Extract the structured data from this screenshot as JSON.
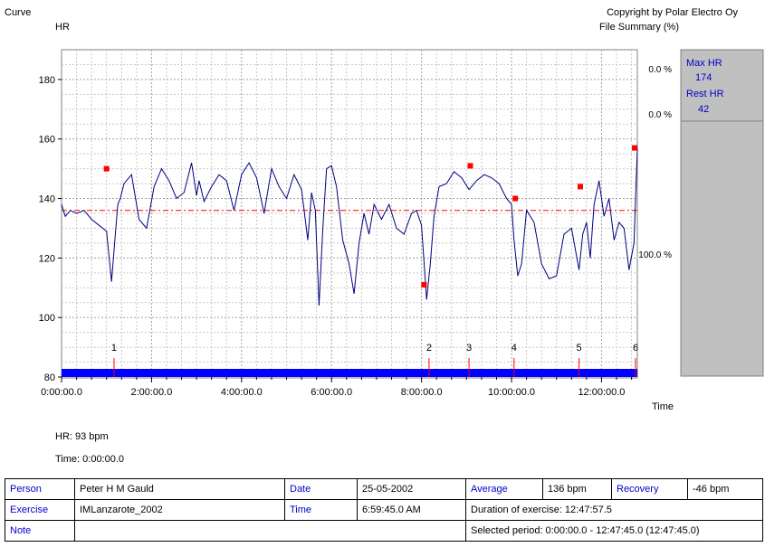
{
  "header": {
    "left_title": "Curve",
    "left_subtitle": "HR",
    "right_title": "Copyright by Polar Electro Oy",
    "right_subtitle": "File Summary (%)"
  },
  "colors": {
    "curve": "#000080",
    "bar": "#0000ff",
    "marker": "#ff0000",
    "grid": "#b4b4b4",
    "panel": "#c0c0c0"
  },
  "chart_data": {
    "type": "line",
    "x_unit": "seconds",
    "xlim": [
      0,
      46065
    ],
    "ylim": [
      80,
      190
    ],
    "yticks": [
      80,
      100,
      120,
      140,
      160,
      180
    ],
    "xtick_labels": [
      "0:00:00.0",
      "2:00:00.0",
      "4:00:00.0",
      "6:00:00.0",
      "8:00:00.0",
      "10:00:00.0",
      "12:00:00.0"
    ],
    "xtick_values": [
      0,
      7200,
      14400,
      21600,
      28800,
      36000,
      43200
    ],
    "xlabel": "Time",
    "ylabel": "HR",
    "average_hr": 136,
    "series": [
      {
        "x": [
          0,
          300,
          700,
          1200,
          1800,
          2400,
          3000,
          3600,
          4000,
          4300,
          4500,
          4700,
          5000,
          5600,
          6200,
          6800,
          7400,
          8000,
          8600,
          9200,
          9800,
          10400,
          10800,
          11000,
          11400,
          12000,
          12600,
          13200,
          13800,
          14400,
          15000,
          15600,
          16200,
          16800,
          17400,
          18000,
          18600,
          19200,
          19700,
          20000,
          20300,
          20600,
          20900,
          21200,
          21600,
          22000,
          22500,
          23000,
          23400,
          23800,
          24200,
          24600,
          25000,
          25600,
          26200,
          26800,
          27400,
          28000,
          28400,
          28800,
          29200,
          29500,
          29800,
          30200,
          30800,
          31400,
          32000,
          32600,
          33200,
          33800,
          34400,
          35000,
          35600,
          36000,
          36200,
          36500,
          36800,
          37200,
          37800,
          38400,
          39000,
          39600,
          40200,
          40800,
          41400,
          41700,
          42000,
          42300,
          42600,
          43000,
          43400,
          43800,
          44200,
          44600,
          45000,
          45400,
          45800,
          46065
        ],
        "y": [
          138,
          134,
          136,
          135,
          136,
          133,
          131,
          129,
          112,
          128,
          138,
          140,
          145,
          148,
          133,
          130,
          144,
          150,
          146,
          140,
          142,
          152,
          141,
          146,
          139,
          144,
          148,
          146,
          136,
          148,
          152,
          147,
          135,
          150,
          144,
          140,
          148,
          143,
          126,
          142,
          136,
          104,
          130,
          150,
          151,
          144,
          126,
          118,
          108,
          125,
          135,
          128,
          138,
          133,
          138,
          130,
          128,
          135,
          136,
          131,
          106,
          118,
          134,
          144,
          145,
          149,
          147,
          143,
          146,
          148,
          147,
          145,
          140,
          138,
          126,
          114,
          118,
          136,
          132,
          118,
          113,
          114,
          128,
          130,
          116,
          128,
          132,
          120,
          138,
          146,
          134,
          140,
          126,
          132,
          130,
          116,
          125,
          157
        ]
      }
    ],
    "hr_markers": [
      {
        "x": 3600,
        "y": 150
      },
      {
        "x": 29000,
        "y": 111
      },
      {
        "x": 32700,
        "y": 151
      },
      {
        "x": 36300,
        "y": 140
      },
      {
        "x": 41500,
        "y": 144
      },
      {
        "x": 45850,
        "y": 157
      }
    ],
    "laps": [
      {
        "label": "1",
        "x": 4200
      },
      {
        "label": "2",
        "x": 29400
      },
      {
        "label": "3",
        "x": 32600
      },
      {
        "label": "4",
        "x": 36200
      },
      {
        "label": "5",
        "x": 41400
      },
      {
        "label": "6",
        "x": 46000
      }
    ],
    "zone_pcts": [
      "0.0 %",
      "0.0 %",
      "100.0 %"
    ]
  },
  "side_panel": {
    "max_hr_label": "Max HR",
    "max_hr_value": "174",
    "rest_hr_label": "Rest HR",
    "rest_hr_value": "42"
  },
  "readout": {
    "hr": "HR: 93 bpm",
    "time": "Time: 0:00:00.0"
  },
  "info": {
    "person_label": "Person",
    "person_value": "Peter H M Gauld",
    "date_label": "Date",
    "date_value": "25-05-2002",
    "average_label": "Average",
    "average_value": "136 bpm",
    "recovery_label": "Recovery",
    "recovery_value": "-46 bpm",
    "exercise_label": "Exercise",
    "exercise_value": "IMLanzarote_2002",
    "time_label": "Time",
    "time_value": "6:59:45.0 AM",
    "duration": "Duration of exercise: 12:47:57.5",
    "note_label": "Note",
    "note_value": "",
    "selected_period": "Selected period: 0:00:00.0 - 12:47:45.0 (12:47:45.0)"
  }
}
